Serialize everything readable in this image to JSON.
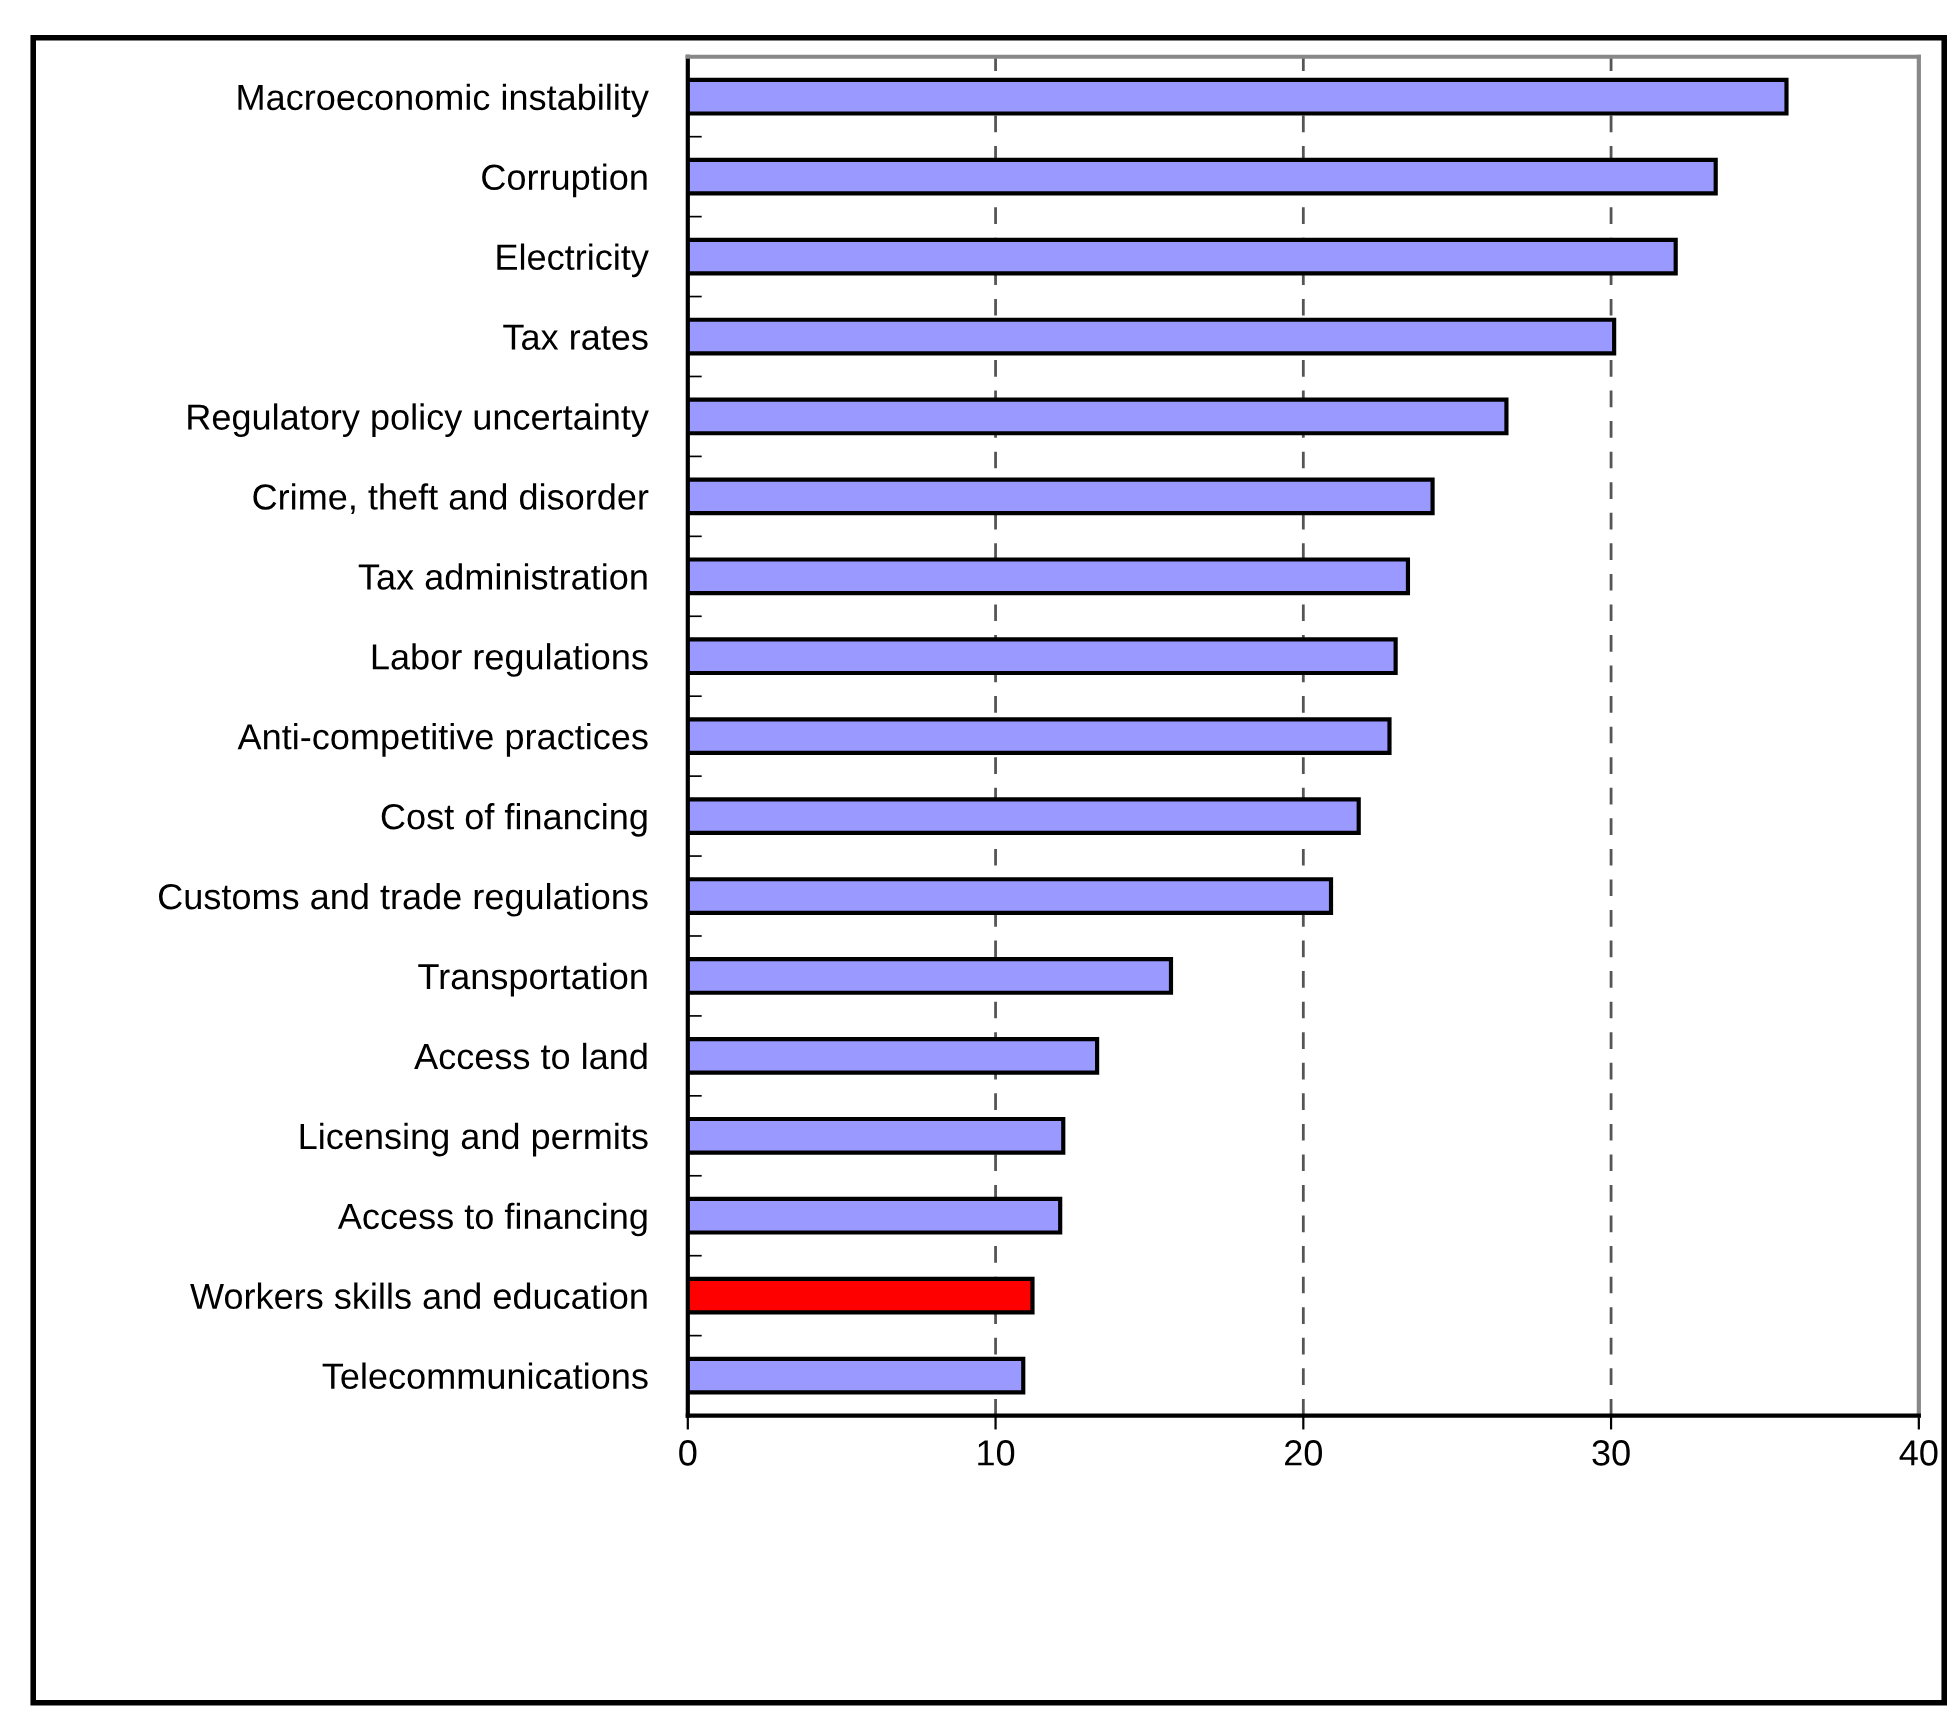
{
  "chart_data": {
    "type": "bar",
    "orientation": "horizontal",
    "categories": [
      "Macroeconomic instability",
      "Corruption",
      "Electricity",
      "Tax rates",
      "Regulatory policy uncertainty",
      "Crime, theft and disorder",
      "Tax administration",
      "Labor regulations",
      "Anti-competitive practices",
      "Cost of financing",
      "Customs and trade regulations",
      "Transportation",
      "Access to land",
      "Licensing and permits",
      "Access to financing",
      "Workers skills and education",
      "Telecommunications"
    ],
    "values": [
      35.7,
      33.4,
      32.1,
      30.1,
      26.6,
      24.2,
      23.4,
      23.0,
      22.8,
      21.8,
      20.9,
      15.7,
      13.3,
      12.2,
      12.1,
      11.2,
      10.9
    ],
    "colors": [
      "#9999ff",
      "#9999ff",
      "#9999ff",
      "#9999ff",
      "#9999ff",
      "#9999ff",
      "#9999ff",
      "#9999ff",
      "#9999ff",
      "#9999ff",
      "#9999ff",
      "#9999ff",
      "#9999ff",
      "#9999ff",
      "#9999ff",
      "#ff0000",
      "#9999ff"
    ],
    "xlim": [
      0,
      40
    ],
    "xticks": [
      0,
      10,
      20,
      30,
      40
    ],
    "grid": "x",
    "line_style": "dashed"
  }
}
